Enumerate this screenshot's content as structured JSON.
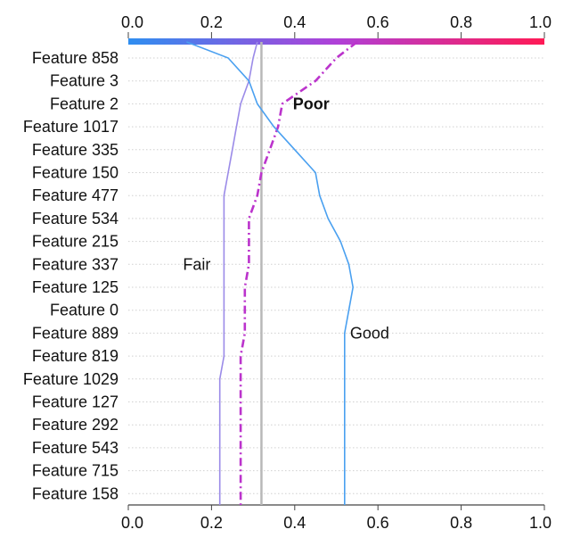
{
  "chart_data": {
    "type": "line",
    "orientation": "horizontal",
    "features": [
      "Feature 858",
      "Feature 3",
      "Feature 2",
      "Feature 1017",
      "Feature 335",
      "Feature 150",
      "Feature 477",
      "Feature 534",
      "Feature 215",
      "Feature 337",
      "Feature 125",
      "Feature 0",
      "Feature 889",
      "Feature 819",
      "Feature 1029",
      "Feature 127",
      "Feature 292",
      "Feature 543",
      "Feature 715",
      "Feature 158"
    ],
    "xlim": [
      0.0,
      1.0
    ],
    "xticks": [
      "0.0",
      "0.2",
      "0.4",
      "0.6",
      "0.8",
      "1.0"
    ],
    "xtick_values": [
      0.0,
      0.2,
      0.4,
      0.6,
      0.8,
      1.0
    ],
    "base_value": 0.32,
    "series": [
      {
        "name": "Poor",
        "label_bold": true,
        "color": "#bb33cc",
        "style": "dashdot",
        "start": 0.55,
        "values": [
          0.5,
          0.45,
          0.37,
          0.36,
          0.34,
          0.32,
          0.31,
          0.29,
          0.29,
          0.29,
          0.28,
          0.28,
          0.28,
          0.27,
          0.27,
          0.27,
          0.27,
          0.27,
          0.27,
          0.27
        ]
      },
      {
        "name": "Fair",
        "label_bold": false,
        "color": "#9b8be8",
        "style": "solid",
        "start": 0.31,
        "values": [
          0.3,
          0.29,
          0.27,
          0.26,
          0.25,
          0.24,
          0.23,
          0.23,
          0.23,
          0.23,
          0.23,
          0.23,
          0.23,
          0.23,
          0.22,
          0.22,
          0.22,
          0.22,
          0.22,
          0.22
        ]
      },
      {
        "name": "Good",
        "label_bold": false,
        "color": "#4aa0f0",
        "style": "solid",
        "start": 0.14,
        "values": [
          0.24,
          0.29,
          0.31,
          0.35,
          0.4,
          0.45,
          0.46,
          0.48,
          0.51,
          0.53,
          0.54,
          0.53,
          0.52,
          0.52,
          0.52,
          0.52,
          0.52,
          0.52,
          0.52,
          0.52
        ]
      }
    ],
    "colorbar": {
      "from": "#2f8ef0",
      "mid": "#b040d8",
      "to": "#ff1a55"
    }
  }
}
